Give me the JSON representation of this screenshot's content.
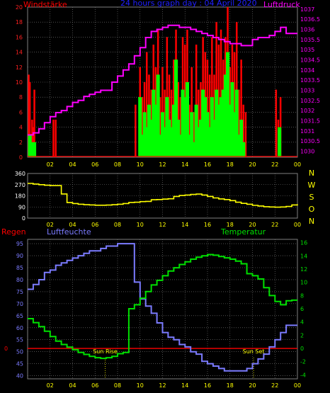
{
  "header": {
    "left_label": "Windstärke",
    "title": "24 hours graph day : 04 April 2020",
    "right_label": "Luftdruck"
  },
  "colors": {
    "grid": "#808080",
    "wind_gust": "#ff0000",
    "wind_avg": "#00ff00",
    "pressure": "#ff00ff",
    "direction": "#ffff00",
    "humidity": "#7b7bff",
    "temperature": "#00e000",
    "rain": "#ff0000",
    "time_ticks": "#ffff00",
    "sun_marker": "#ffff00"
  },
  "panel_labels": {
    "rain": "Regen",
    "humidity": "Luftfeuchte",
    "temperature": "Temperatur",
    "sunrise": "Sun Rise",
    "sunset": "Sun Set"
  },
  "chart_data": [
    {
      "type": "bar",
      "title": "24 hours graph day : 04 April 2020",
      "x_ticks": [
        "02",
        "04",
        "06",
        "08",
        "10",
        "12",
        "14",
        "16",
        "18",
        "20",
        "22",
        "00"
      ],
      "xlim": [
        0,
        24
      ],
      "left_axis": {
        "label": "Windstärke",
        "ticks": [
          0,
          2,
          4,
          6,
          8,
          10,
          12,
          14,
          16,
          18,
          20
        ],
        "ylim": [
          0,
          20
        ]
      },
      "right_axis": {
        "label": "Luftdruck",
        "ticks": [
          1030,
          1030.5,
          1031,
          1031.5,
          1032,
          1032.5,
          1033,
          1033.5,
          1034,
          1034.5,
          1035,
          1035.5,
          1036,
          1036.5,
          1037
        ],
        "ylim": [
          1029.7,
          1037.1
        ]
      },
      "series": [
        {
          "name": "Windstärke",
          "kind": "gust",
          "x": [
            0.1,
            0.2,
            0.4,
            0.5,
            0.6,
            2.3,
            2.5,
            9.6,
            10.0,
            10.2,
            10.4,
            10.6,
            10.8,
            11.0,
            11.2,
            11.4,
            11.6,
            11.8,
            12.0,
            12.2,
            12.4,
            12.6,
            12.8,
            13.0,
            13.2,
            13.4,
            13.6,
            13.8,
            14.0,
            14.2,
            14.4,
            14.6,
            14.8,
            15.0,
            15.2,
            15.4,
            15.6,
            15.8,
            16.0,
            16.2,
            16.4,
            16.6,
            16.8,
            17.0,
            17.2,
            17.4,
            17.6,
            17.8,
            18.0,
            18.2,
            18.4,
            18.6,
            18.8,
            19.0,
            19.2,
            19.4,
            22.1,
            22.3,
            22.5
          ],
          "values": [
            11,
            10,
            5,
            4,
            9,
            5,
            5,
            7,
            12,
            8,
            10,
            14,
            11,
            9,
            15,
            12,
            17,
            8,
            12,
            9,
            16,
            11,
            9,
            13,
            17,
            10,
            8,
            16,
            15,
            17,
            7,
            12,
            6,
            15,
            9,
            10,
            16,
            14,
            13,
            11,
            16,
            11,
            18,
            15,
            17,
            13,
            16,
            20,
            12,
            15,
            14,
            18,
            9,
            13,
            7,
            6,
            9,
            5,
            8
          ]
        },
        {
          "name": "Windstärke",
          "kind": "average",
          "x": [
            0.2,
            0.4,
            0.6,
            10.0,
            10.2,
            10.4,
            10.6,
            10.8,
            11.0,
            11.2,
            11.4,
            11.6,
            11.8,
            12.0,
            12.2,
            12.4,
            12.6,
            12.8,
            13.0,
            13.2,
            13.4,
            13.6,
            13.8,
            14.0,
            14.2,
            14.4,
            14.6,
            14.8,
            15.0,
            15.2,
            15.4,
            15.6,
            15.8,
            16.0,
            16.2,
            16.4,
            16.6,
            16.8,
            17.0,
            17.2,
            17.4,
            17.6,
            17.8,
            18.0,
            18.2,
            18.4,
            18.6,
            18.8,
            19.0,
            19.2,
            22.4
          ],
          "values": [
            3,
            2,
            2,
            8,
            3,
            6,
            4,
            7,
            5,
            9,
            7,
            11,
            3,
            6,
            4,
            8,
            5,
            4,
            7,
            13,
            5,
            3,
            9,
            8,
            10,
            3,
            6,
            2,
            7,
            4,
            5,
            9,
            8,
            6,
            4,
            8,
            5,
            9,
            7,
            8,
            9,
            11,
            14,
            7,
            10,
            6,
            9,
            3,
            5,
            2,
            4
          ]
        },
        {
          "name": "Luftdruck",
          "kind": "line",
          "x": [
            0.0,
            0.5,
            1.0,
            1.5,
            2.0,
            2.5,
            3.0,
            3.5,
            4.0,
            4.5,
            5.0,
            5.5,
            6.0,
            6.5,
            7.0,
            7.5,
            8.0,
            8.5,
            9.0,
            9.5,
            10.0,
            10.5,
            11.0,
            11.5,
            12.0,
            12.5,
            13.0,
            13.5,
            14.0,
            14.5,
            15.0,
            15.5,
            16.0,
            16.5,
            17.0,
            17.5,
            18.0,
            18.5,
            19.0,
            19.5,
            20.0,
            20.5,
            21.0,
            21.5,
            22.0,
            22.5,
            23.0,
            23.5,
            24.0
          ],
          "values": [
            1030.8,
            1030.9,
            1031.1,
            1031.4,
            1031.7,
            1031.9,
            1032.0,
            1032.2,
            1032.4,
            1032.5,
            1032.7,
            1032.8,
            1032.9,
            1033.0,
            1033.0,
            1033.4,
            1033.7,
            1034.0,
            1034.3,
            1034.7,
            1035.1,
            1035.6,
            1035.9,
            1036.0,
            1036.1,
            1036.2,
            1036.2,
            1036.1,
            1036.1,
            1036.0,
            1035.9,
            1035.8,
            1035.7,
            1035.6,
            1035.5,
            1035.4,
            1035.3,
            1035.3,
            1035.2,
            1035.2,
            1035.5,
            1035.6,
            1035.6,
            1035.7,
            1035.9,
            1036.1,
            1035.8,
            1035.8,
            1035.8
          ]
        }
      ]
    },
    {
      "type": "line",
      "x_ticks": [
        "02",
        "04",
        "06",
        "08",
        "10",
        "12",
        "14",
        "16",
        "18",
        "20",
        "22",
        "00"
      ],
      "xlim": [
        0,
        24
      ],
      "left_axis": {
        "ticks": [
          0,
          90,
          180,
          270,
          360
        ],
        "ylim": [
          0,
          360
        ]
      },
      "right_axis": {
        "ticks": [
          "N",
          "W",
          "S",
          "O",
          "N"
        ]
      },
      "series": [
        {
          "name": "direction",
          "x": [
            0.0,
            0.5,
            1.0,
            1.5,
            2.0,
            2.5,
            3.0,
            3.5,
            4.0,
            4.5,
            5.0,
            5.5,
            6.0,
            6.5,
            7.0,
            7.5,
            8.0,
            8.5,
            9.0,
            9.5,
            10.0,
            10.5,
            11.0,
            11.5,
            12.0,
            12.5,
            13.0,
            13.5,
            14.0,
            14.5,
            15.0,
            15.5,
            16.0,
            16.5,
            17.0,
            17.5,
            18.0,
            18.5,
            19.0,
            19.5,
            20.0,
            20.5,
            21.0,
            21.5,
            22.0,
            22.5,
            23.0,
            23.5,
            24.0
          ],
          "values": [
            280,
            275,
            270,
            265,
            262,
            262,
            195,
            125,
            118,
            112,
            108,
            106,
            104,
            104,
            105,
            108,
            112,
            118,
            126,
            128,
            133,
            135,
            148,
            150,
            153,
            156,
            175,
            182,
            186,
            191,
            194,
            186,
            175,
            163,
            155,
            150,
            141,
            128,
            119,
            112,
            103,
            98,
            92,
            90,
            88,
            90,
            94,
            106,
            112
          ]
        }
      ]
    },
    {
      "type": "line",
      "x_ticks": [
        "02",
        "04",
        "06",
        "08",
        "10",
        "12",
        "14",
        "16",
        "18",
        "20",
        "22",
        "00"
      ],
      "xlim": [
        0,
        24
      ],
      "left_axis": {
        "label": "Luftfeuchte",
        "ticks": [
          40,
          45,
          50,
          55,
          60,
          65,
          70,
          75,
          80,
          85,
          90,
          95
        ],
        "ylim": [
          38.7,
          96.8
        ]
      },
      "right_axis": {
        "label": "Temperatur",
        "ticks": [
          -4,
          -2,
          0,
          2,
          4,
          6,
          8,
          10,
          12,
          14,
          16
        ],
        "ylim": [
          -4.6,
          16.5
        ]
      },
      "rain_axis": {
        "label": "Regen",
        "ticks": [
          0
        ],
        "value": 0
      },
      "annotations": [
        {
          "label": "Sun Rise",
          "x": 6.9
        },
        {
          "label": "Sun Set",
          "x": 20.1
        }
      ],
      "series": [
        {
          "name": "Luftfeuchte",
          "x": [
            0.0,
            0.5,
            1.0,
            1.5,
            2.0,
            2.5,
            3.0,
            3.5,
            4.0,
            4.5,
            5.0,
            5.5,
            6.0,
            6.5,
            7.0,
            7.5,
            8.0,
            8.5,
            9.0,
            9.5,
            10.0,
            10.5,
            11.0,
            11.5,
            12.0,
            12.5,
            13.0,
            13.5,
            14.0,
            14.5,
            15.0,
            15.5,
            16.0,
            16.5,
            17.0,
            17.5,
            18.0,
            18.5,
            19.0,
            19.5,
            20.0,
            20.5,
            21.0,
            21.5,
            22.0,
            22.5,
            23.0,
            23.5,
            24.0
          ],
          "values": [
            76,
            78,
            80,
            83,
            84,
            86,
            87,
            88,
            89,
            90,
            91,
            92,
            92,
            93,
            94,
            94,
            95,
            95,
            95,
            79,
            72,
            69,
            66,
            62,
            58,
            56,
            55,
            53,
            52,
            50,
            49,
            46,
            45,
            44,
            43,
            42,
            42,
            42,
            42,
            43,
            45,
            47,
            49,
            52,
            55,
            58,
            61,
            61,
            61
          ]
        },
        {
          "name": "Temperatur",
          "x": [
            0.0,
            0.5,
            1.0,
            1.5,
            2.0,
            2.5,
            3.0,
            3.5,
            4.0,
            4.5,
            5.0,
            5.5,
            6.0,
            6.5,
            7.0,
            7.5,
            8.0,
            8.5,
            9.0,
            9.5,
            10.0,
            10.5,
            11.0,
            11.5,
            12.0,
            12.5,
            13.0,
            13.5,
            14.0,
            14.5,
            15.0,
            15.5,
            16.0,
            16.5,
            17.0,
            17.5,
            18.0,
            18.5,
            19.0,
            19.5,
            20.0,
            20.5,
            21.0,
            21.5,
            22.0,
            22.5,
            23.0,
            23.5,
            24.0
          ],
          "values": [
            4.5,
            3.9,
            3.3,
            2.6,
            1.8,
            1.1,
            0.6,
            0.2,
            -0.2,
            -0.6,
            -0.9,
            -1.2,
            -1.4,
            -1.5,
            -1.4,
            -1.2,
            -0.8,
            -0.6,
            6.0,
            6.6,
            7.6,
            8.6,
            9.6,
            10.3,
            11.0,
            11.7,
            12.2,
            12.7,
            13.1,
            13.5,
            13.8,
            14.0,
            14.2,
            14.1,
            13.9,
            13.7,
            13.5,
            13.2,
            12.8,
            11.3,
            11.0,
            10.5,
            9.2,
            8.0,
            7.1,
            6.6,
            7.2,
            7.3,
            7.3
          ]
        }
      ]
    }
  ]
}
